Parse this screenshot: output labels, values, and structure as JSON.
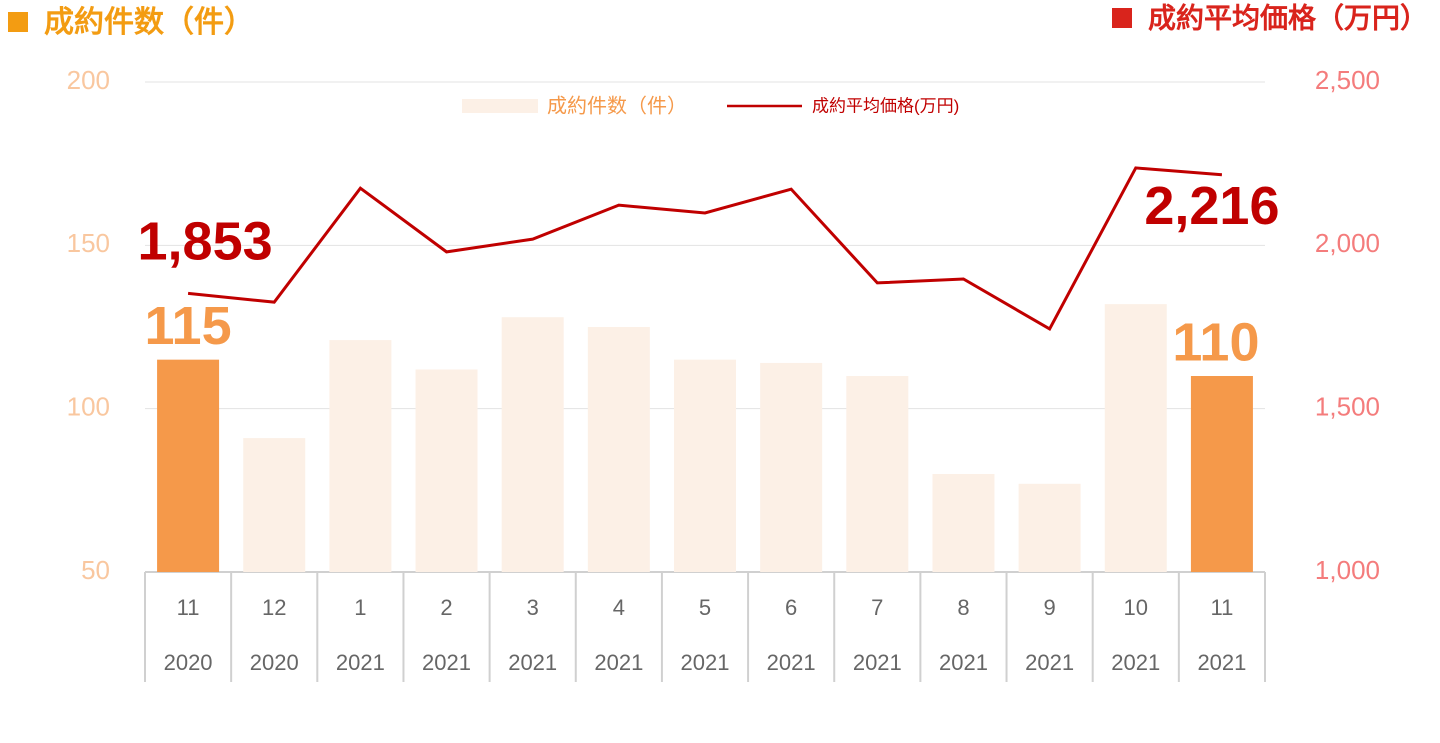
{
  "chart_data": {
    "type": "bar-line",
    "y_label": "成約件数（件）",
    "y2_label": "成約平均価格（万円）",
    "categories": [
      [
        "11",
        "2020"
      ],
      [
        "12",
        "2020"
      ],
      [
        "1",
        "2021"
      ],
      [
        "2",
        "2021"
      ],
      [
        "3",
        "2021"
      ],
      [
        "4",
        "2021"
      ],
      [
        "5",
        "2021"
      ],
      [
        "6",
        "2021"
      ],
      [
        "7",
        "2021"
      ],
      [
        "8",
        "2021"
      ],
      [
        "9",
        "2021"
      ],
      [
        "10",
        "2021"
      ],
      [
        "11",
        "2021"
      ]
    ],
    "series": [
      {
        "name": "成約件数（件）",
        "type": "bar",
        "axis": "y",
        "color": "#fcf0e6",
        "highlight_color": "#f5994a",
        "label_color": "#f5994a",
        "values": [
          115,
          91,
          121,
          112,
          128,
          125,
          115,
          114,
          110,
          80,
          77,
          132,
          110
        ],
        "value_labels": [
          "115",
          null,
          null,
          null,
          null,
          null,
          null,
          null,
          null,
          null,
          null,
          null,
          "110"
        ]
      },
      {
        "name": "成約平均価格(万円)",
        "type": "line",
        "axis": "y2",
        "color": "#c00000",
        "label_color": "#c00000",
        "values": [
          1853,
          1826,
          2175,
          1980,
          2019,
          2123,
          2099,
          2172,
          1885,
          1897,
          1744,
          2237,
          2216
        ],
        "value_labels": [
          "1,853",
          null,
          null,
          null,
          null,
          null,
          null,
          null,
          null,
          null,
          null,
          null,
          "2,216"
        ]
      }
    ],
    "ylim": [
      50,
      200
    ],
    "yticks": [
      50,
      100,
      150,
      200
    ],
    "y2lim": [
      1000,
      2500
    ],
    "y2ticks": [
      {
        "value": 1000,
        "label": "1,000"
      },
      {
        "value": 1500,
        "label": "1,500"
      },
      {
        "value": 2000,
        "label": "2,000"
      },
      {
        "value": 2500,
        "label": "2,500"
      }
    ],
    "grid": true,
    "legend": "top"
  }
}
